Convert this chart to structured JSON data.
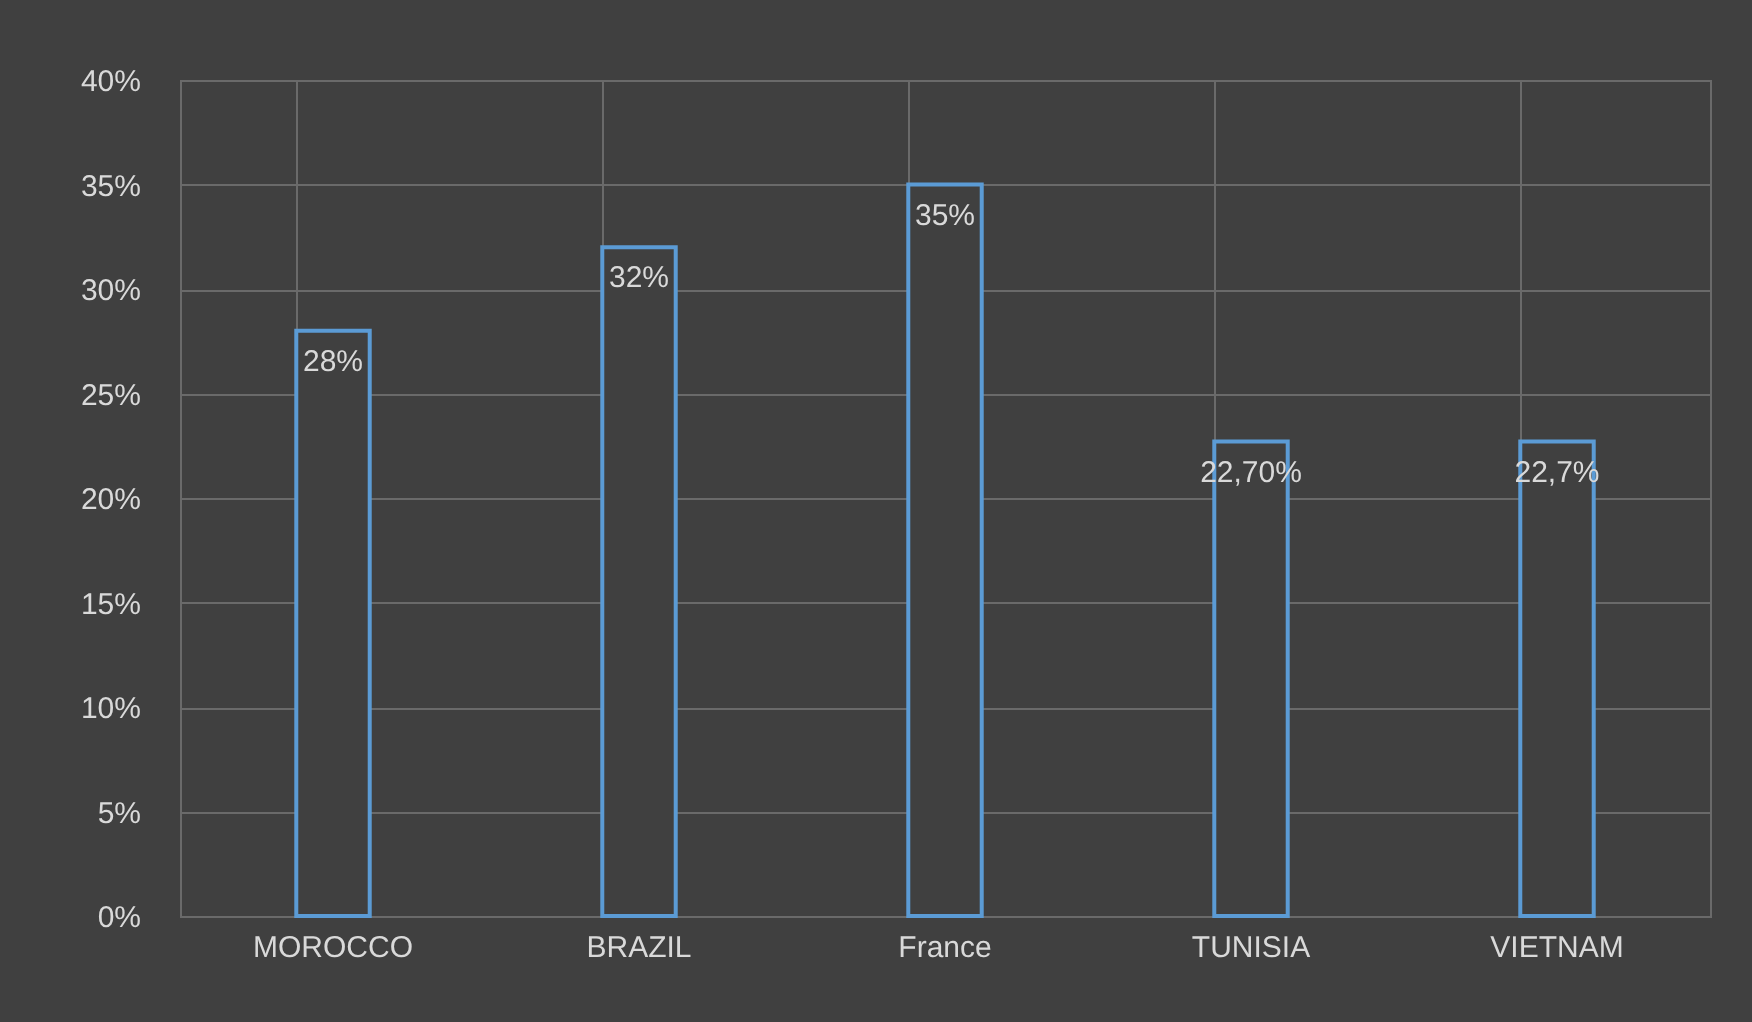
{
  "chart_data": {
    "type": "bar",
    "categories": [
      "MOROCCO",
      "BRAZIL",
      "France",
      "TUNISIA",
      "VIETNAM"
    ],
    "values": [
      28,
      32,
      35,
      22.7,
      22.7
    ],
    "value_labels": [
      "28%",
      "32%",
      "35%",
      "22,70%",
      "22,7%"
    ],
    "color": "#5b9bd5",
    "ylim": [
      0,
      40
    ],
    "yticks": [
      {
        "value": 0,
        "label": "0%"
      },
      {
        "value": 5,
        "label": "5%"
      },
      {
        "value": 10,
        "label": "10%"
      },
      {
        "value": 15,
        "label": "15%"
      },
      {
        "value": 20,
        "label": "20%"
      },
      {
        "value": 25,
        "label": "25%"
      },
      {
        "value": 30,
        "label": "30%"
      },
      {
        "value": 35,
        "label": "35%"
      },
      {
        "value": 40,
        "label": "40%"
      }
    ],
    "grid": true
  }
}
